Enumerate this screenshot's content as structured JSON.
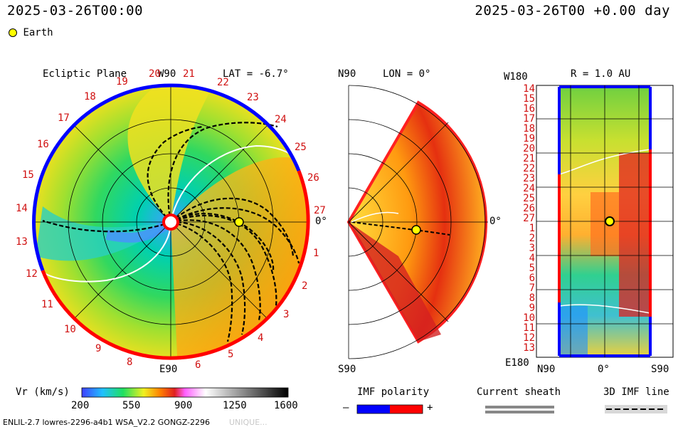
{
  "header": {
    "title_left": "2025-03-26T00:00",
    "title_right": "2025-03-26T00 +0.00 day",
    "legend_earth": "Earth"
  },
  "ecliptic": {
    "title": "Ecliptic Plane",
    "lat_label": "LAT = -6.7°",
    "top_label": "W90",
    "bottom_label": "E90",
    "right_label": "0°",
    "ticks": [
      "19",
      "20",
      "21",
      "22",
      "23",
      "24",
      "25",
      "26",
      "27",
      "1",
      "2",
      "3",
      "4",
      "5",
      "6",
      "8",
      "9",
      "10",
      "11",
      "12",
      "13",
      "14",
      "15",
      "16",
      "17",
      "18"
    ]
  },
  "meridional": {
    "top_label": "N90",
    "lon_label": "LON = 0°",
    "bottom_label": "S90",
    "right_label": "0°"
  },
  "map": {
    "top_left": "W180",
    "title": "R = 1.0 AU",
    "bottom_left": "E180",
    "x_labels": [
      "N90",
      "0°",
      "S90"
    ],
    "rows": [
      "14",
      "15",
      "16",
      "17",
      "18",
      "19",
      "20",
      "21",
      "22",
      "23",
      "24",
      "25",
      "26",
      "27",
      "1",
      "2",
      "3",
      "4",
      "5",
      "6",
      "7",
      "8",
      "9",
      "10",
      "11",
      "12",
      "13"
    ]
  },
  "colorbar": {
    "title": "Vr (km/s)",
    "ticks": [
      "200",
      "550",
      "900",
      "1250",
      "1600"
    ]
  },
  "legends": {
    "imf_title": "IMF polarity",
    "imf_minus": "–",
    "imf_plus": "+",
    "sheath_title": "Current sheath",
    "imf3d_title": "3D IMF line"
  },
  "footer": {
    "left": "ENLIL-2.7 lowres-2296-a4b1 WSA_V2.2 GONGZ-2296",
    "right": "UNIQUE..."
  },
  "colors": {
    "negative": "#0000ff",
    "positive": "#ff0000",
    "earth": "#ffff00"
  }
}
